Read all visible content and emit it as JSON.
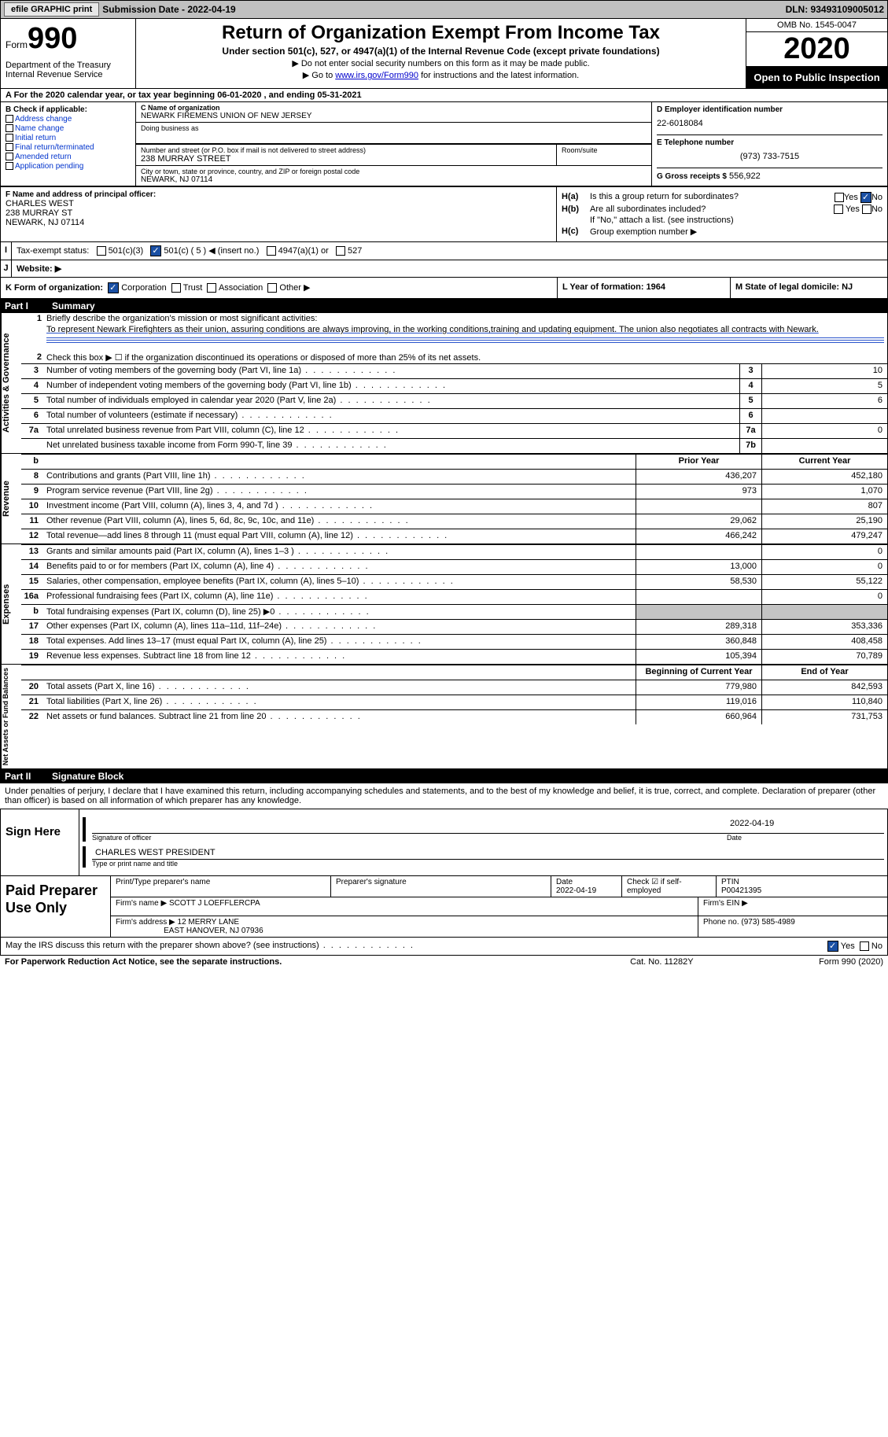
{
  "top": {
    "efile_btn": "efile GRAPHIC print",
    "sub_date": "Submission Date - 2022-04-19",
    "dln": "DLN: 93493109005012"
  },
  "header": {
    "form_label": "Form",
    "form_no": "990",
    "dept": "Department of the Treasury\nInternal Revenue Service",
    "title": "Return of Organization Exempt From Income Tax",
    "sub": "Under section 501(c), 527, or 4947(a)(1) of the Internal Revenue Code (except private foundations)",
    "note1": "▶ Do not enter social security numbers on this form as it may be made public.",
    "note2_pre": "▶ Go to ",
    "note2_link": "www.irs.gov/Form990",
    "note2_post": " for instructions and the latest information.",
    "omb": "OMB No. 1545-0047",
    "year": "2020",
    "open": "Open to Public Inspection"
  },
  "row_a": "A For the 2020 calendar year, or tax year beginning 06-01-2020    , and ending 05-31-2021",
  "col_b": {
    "hdr": "B Check if applicable:",
    "items": [
      "Address change",
      "Name change",
      "Initial return",
      "Final return/terminated",
      "Amended return",
      "Application pending"
    ]
  },
  "col_c": {
    "name_lbl": "C Name of organization",
    "name": "NEWARK FIREMENS UNION OF NEW JERSEY",
    "dba_lbl": "Doing business as",
    "addr_lbl": "Number and street (or P.O. box if mail is not delivered to street address)",
    "addr": "238 MURRAY STREET",
    "room_lbl": "Room/suite",
    "city_lbl": "City or town, state or province, country, and ZIP or foreign postal code",
    "city": "NEWARK, NJ  07114"
  },
  "col_d": {
    "ein_lbl": "D Employer identification number",
    "ein": "22-6018084",
    "tel_lbl": "E Telephone number",
    "tel": "(973) 733-7515",
    "gross_lbl": "G Gross receipts $",
    "gross": "556,922"
  },
  "officer": {
    "lbl": "F Name and address of principal officer:",
    "name": "CHARLES WEST",
    "addr1": "238 MURRAY ST",
    "addr2": "NEWARK, NJ  07114"
  },
  "h": {
    "a_lbl": "H(a)",
    "a_txt": "Is this a group return for subordinates?",
    "b_lbl": "H(b)",
    "b_txt": "Are all subordinates included?",
    "b_note": "If \"No,\" attach a list. (see instructions)",
    "c_lbl": "H(c)",
    "c_txt": "Group exemption number ▶"
  },
  "status": {
    "lbl": "I",
    "txt": "Tax-exempt status:",
    "o1": "501(c)(3)",
    "o2": "501(c) ( 5 ) ◀ (insert no.)",
    "o3": "4947(a)(1) or",
    "o4": "527"
  },
  "website": {
    "lbl": "J",
    "txt": "Website: ▶"
  },
  "org": {
    "k": "K Form of organization:",
    "k1": "Corporation",
    "k2": "Trust",
    "k3": "Association",
    "k4": "Other ▶",
    "l": "L Year of formation: 1964",
    "m": "M State of legal domicile: NJ"
  },
  "part1": {
    "num": "Part I",
    "title": "Summary"
  },
  "gov": {
    "label": "Activities & Governance",
    "l1_num": "1",
    "l1": "Briefly describe the organization's mission or most significant activities:",
    "l1_txt": "To represent Newark Firefighters as their union, assuring conditions are always improving, in the working conditions,training and updating equipment. The union also negotiates all contracts with Newark.",
    "l2_num": "2",
    "l2": "Check this box ▶ ☐  if the organization discontinued its operations or disposed of more than 25% of its net assets.",
    "rows": [
      {
        "n": "3",
        "t": "Number of voting members of the governing body (Part VI, line 1a)",
        "b": "3",
        "v": "10"
      },
      {
        "n": "4",
        "t": "Number of independent voting members of the governing body (Part VI, line 1b)",
        "b": "4",
        "v": "5"
      },
      {
        "n": "5",
        "t": "Total number of individuals employed in calendar year 2020 (Part V, line 2a)",
        "b": "5",
        "v": "6"
      },
      {
        "n": "6",
        "t": "Total number of volunteers (estimate if necessary)",
        "b": "6",
        "v": ""
      },
      {
        "n": "7a",
        "t": "Total unrelated business revenue from Part VIII, column (C), line 12",
        "b": "7a",
        "v": "0"
      },
      {
        "n": "",
        "t": "Net unrelated business taxable income from Form 990-T, line 39",
        "b": "7b",
        "v": ""
      }
    ]
  },
  "rev": {
    "label": "Revenue",
    "hdr_py": "Prior Year",
    "hdr_cy": "Current Year",
    "rows": [
      {
        "n": "8",
        "t": "Contributions and grants (Part VIII, line 1h)",
        "py": "436,207",
        "cy": "452,180"
      },
      {
        "n": "9",
        "t": "Program service revenue (Part VIII, line 2g)",
        "py": "973",
        "cy": "1,070"
      },
      {
        "n": "10",
        "t": "Investment income (Part VIII, column (A), lines 3, 4, and 7d )",
        "py": "",
        "cy": "807"
      },
      {
        "n": "11",
        "t": "Other revenue (Part VIII, column (A), lines 5, 6d, 8c, 9c, 10c, and 11e)",
        "py": "29,062",
        "cy": "25,190"
      },
      {
        "n": "12",
        "t": "Total revenue—add lines 8 through 11 (must equal Part VIII, column (A), line 12)",
        "py": "466,242",
        "cy": "479,247"
      }
    ]
  },
  "exp": {
    "label": "Expenses",
    "rows": [
      {
        "n": "13",
        "t": "Grants and similar amounts paid (Part IX, column (A), lines 1–3 )",
        "py": "",
        "cy": "0"
      },
      {
        "n": "14",
        "t": "Benefits paid to or for members (Part IX, column (A), line 4)",
        "py": "13,000",
        "cy": "0"
      },
      {
        "n": "15",
        "t": "Salaries, other compensation, employee benefits (Part IX, column (A), lines 5–10)",
        "py": "58,530",
        "cy": "55,122"
      },
      {
        "n": "16a",
        "t": "Professional fundraising fees (Part IX, column (A), line 11e)",
        "py": "",
        "cy": "0"
      },
      {
        "n": "b",
        "t": "Total fundraising expenses (Part IX, column (D), line 25) ▶0",
        "py": "GRAY",
        "cy": "GRAY"
      },
      {
        "n": "17",
        "t": "Other expenses (Part IX, column (A), lines 11a–11d, 11f–24e)",
        "py": "289,318",
        "cy": "353,336"
      },
      {
        "n": "18",
        "t": "Total expenses. Add lines 13–17 (must equal Part IX, column (A), line 25)",
        "py": "360,848",
        "cy": "408,458"
      },
      {
        "n": "19",
        "t": "Revenue less expenses. Subtract line 18 from line 12",
        "py": "105,394",
        "cy": "70,789"
      }
    ]
  },
  "net": {
    "label": "Net Assets or Fund Balances",
    "hdr_b": "Beginning of Current Year",
    "hdr_e": "End of Year",
    "rows": [
      {
        "n": "20",
        "t": "Total assets (Part X, line 16)",
        "py": "779,980",
        "cy": "842,593"
      },
      {
        "n": "21",
        "t": "Total liabilities (Part X, line 26)",
        "py": "119,016",
        "cy": "110,840"
      },
      {
        "n": "22",
        "t": "Net assets or fund balances. Subtract line 21 from line 20",
        "py": "660,964",
        "cy": "731,753"
      }
    ]
  },
  "part2": {
    "num": "Part II",
    "title": "Signature Block"
  },
  "sig": {
    "decl": "Under penalties of perjury, I declare that I have examined this return, including accompanying schedules and statements, and to the best of my knowledge and belief, it is true, correct, and complete. Declaration of preparer (other than officer) is based on all information of which preparer has any knowledge.",
    "sign_here": "Sign Here",
    "sig_of_officer": "Signature of officer",
    "date": "2022-04-19",
    "date_lbl": "Date",
    "name": "CHARLES WEST PRESIDENT",
    "name_lbl": "Type or print name and title"
  },
  "paid": {
    "lbl": "Paid Preparer Use Only",
    "h1": "Print/Type preparer's name",
    "h2": "Preparer's signature",
    "h3": "Date",
    "h3v": "2022-04-19",
    "h4": "Check ☑ if self-employed",
    "h5": "PTIN",
    "h5v": "P00421395",
    "firm_lbl": "Firm's name    ▶",
    "firm": "SCOTT J LOEFFLERCPA",
    "ein_lbl": "Firm's EIN ▶",
    "addr_lbl": "Firm's address ▶",
    "addr1": "12 MERRY LANE",
    "addr2": "EAST HANOVER, NJ  07936",
    "phone_lbl": "Phone no.",
    "phone": "(973) 585-4989"
  },
  "discuss": "May the IRS discuss this return with the preparer shown above? (see instructions)",
  "footer": {
    "l": "For Paperwork Reduction Act Notice, see the separate instructions.",
    "c": "Cat. No. 11282Y",
    "r": "Form 990 (2020)"
  }
}
